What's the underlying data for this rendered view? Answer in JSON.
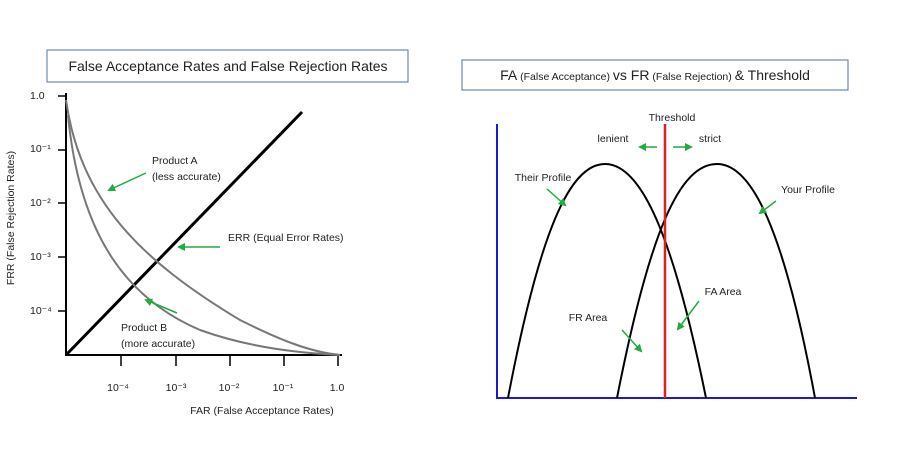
{
  "left_panel": {
    "title": "False Acceptance Rates and False Rejection Rates",
    "y_axis_label": "FRR (False Rejection Rates)",
    "x_axis_label": "FAR (False Acceptance Rates)",
    "y_tick_labels": [
      "1.0",
      "10⁻¹",
      "10⁻²",
      "10⁻³",
      "10⁻⁴"
    ],
    "x_tick_labels": [
      "10⁻⁴",
      "10⁻³",
      "10⁻²",
      "10⁻¹",
      "1.0"
    ],
    "product_a": [
      "Product A",
      "(less accurate)"
    ],
    "err": "ERR (Equal Error Rates)",
    "product_b": [
      "Product B",
      "(more accurate)"
    ]
  },
  "right_panel": {
    "title": [
      "FA",
      "(False Acceptance)",
      "vs FR",
      "(False Rejection)",
      "& Threshold"
    ],
    "threshold": "Threshold",
    "lenient": "lenient",
    "strict": "strict",
    "their_profile": "Their Profile",
    "your_profile": "Your Profile",
    "fa_area": "FA Area",
    "fr_area": "FR Area"
  }
}
